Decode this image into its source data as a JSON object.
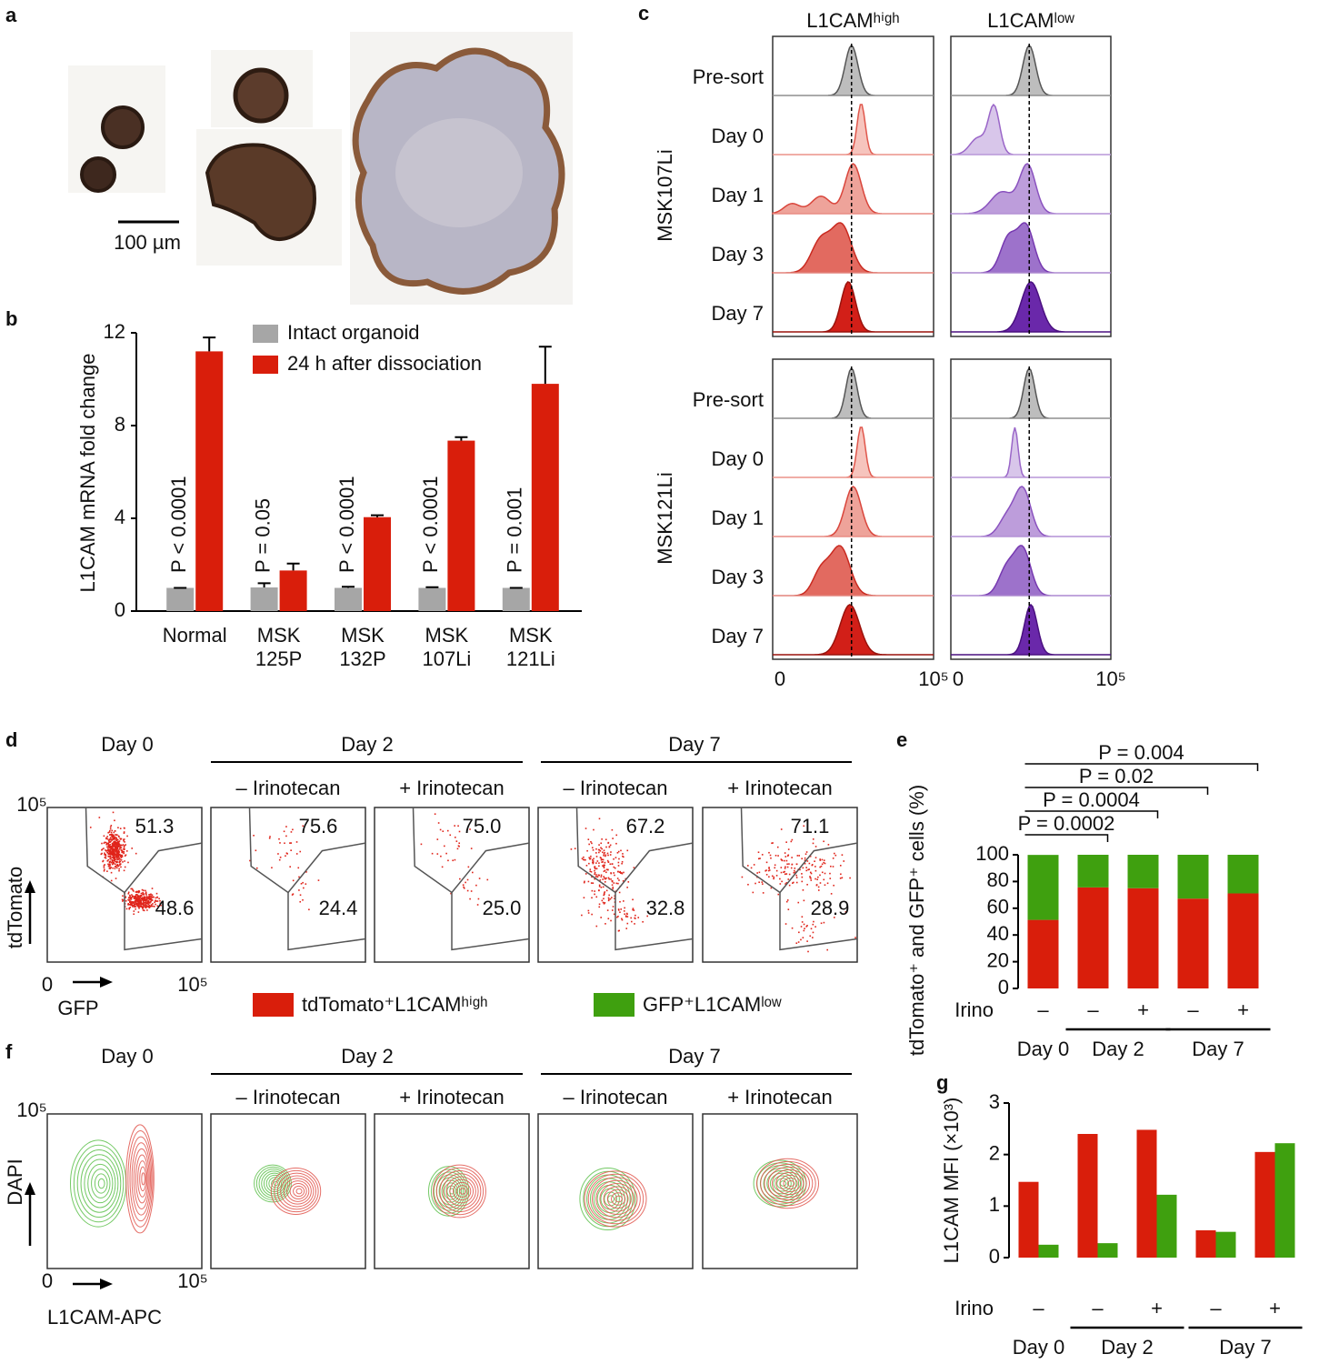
{
  "panel_labels": [
    "a",
    "b",
    "c",
    "d",
    "e",
    "f",
    "g"
  ],
  "panel_a": {
    "scale_bar": "100 µm"
  },
  "chart_data": [
    {
      "type": "bar",
      "y_label": "L1CAM mRNA fold change",
      "categories": [
        "Normal",
        "MSK 125P",
        "MSK 132P",
        "MSK 107Li",
        "MSK 121Li"
      ],
      "series": [
        {
          "name": "Intact organoid",
          "color": "#a6a6a6",
          "values": [
            1,
            1.02,
            1,
            1,
            1
          ],
          "errors": [
            0,
            0.18,
            0.05,
            0.03,
            0
          ]
        },
        {
          "name": "24 h after dissociation",
          "color": "#d91e0b",
          "values": [
            11.2,
            1.75,
            4.05,
            7.35,
            9.8
          ],
          "errors": [
            0.6,
            0.3,
            0.08,
            0.15,
            1.6
          ]
        }
      ],
      "annotations": [
        "P < 0.0001",
        "P = 0.05",
        "P < 0.0001",
        "P < 0.0001",
        "P = 0.001"
      ],
      "ylim": [
        0,
        12
      ],
      "yticks": [
        0,
        4,
        8,
        12
      ]
    },
    {
      "type": "stacked_bar",
      "y_label": "tdTomato⁺ and GFP⁺ cells (%)",
      "row_label": "Irino",
      "categories": [
        "–",
        "–",
        "+",
        "–",
        "+"
      ],
      "groups": [
        "Day 0",
        "Day 2",
        "Day 7"
      ],
      "series": [
        {
          "name": "tdTomato⁺L1CAMʰⁱᵍʰ",
          "color": "#d91e0b",
          "values": [
            51.3,
            75.6,
            75.0,
            67.2,
            71.1
          ]
        },
        {
          "name": "GFP⁺L1CAMˡᵒʷ",
          "color": "#3fa00f",
          "values": [
            48.6,
            24.4,
            25.0,
            32.8,
            28.9
          ]
        }
      ],
      "brackets": [
        "P = 0.0002",
        "P = 0.0004",
        "P = 0.02",
        "P = 0.004"
      ],
      "ylim": [
        0,
        100
      ],
      "yticks": [
        0,
        20,
        40,
        60,
        80,
        100
      ]
    },
    {
      "type": "bar",
      "y_label": "L1CAM MFI (×10³)",
      "row_label": "Irino",
      "categories": [
        "–",
        "–",
        "+",
        "–",
        "+"
      ],
      "groups": [
        "Day 0",
        "Day 2",
        "Day 7"
      ],
      "series": [
        {
          "color": "#d91e0b",
          "values": [
            1.47,
            2.4,
            2.48,
            0.53,
            2.05
          ]
        },
        {
          "color": "#3fa00f",
          "values": [
            0.25,
            0.28,
            1.22,
            0.5,
            2.22
          ]
        }
      ],
      "ylim": [
        0,
        3
      ],
      "yticks": [
        0,
        1,
        2,
        3
      ]
    }
  ],
  "panel_c": {
    "columns": [
      "L1CAMʰⁱᵍʰ",
      "L1CAMˡᵒʷ"
    ],
    "groups": [
      "MSK107Li",
      "MSK121Li"
    ],
    "rows": [
      "Pre-sort",
      "Day 0",
      "Day 1",
      "Day 3",
      "Day 7"
    ],
    "x_ticks": [
      0,
      {
        "value": 100000,
        "label": "10⁵"
      }
    ]
  },
  "panel_d": {
    "titles": [
      "Day 0",
      "Day 2",
      "Day 7"
    ],
    "conditions": [
      "– Irinotecan",
      "+ Irinotecan"
    ],
    "gates": [
      [
        51.3,
        48.6
      ],
      [
        75.6,
        24.4
      ],
      [
        {
          "value": 75,
          "label": "75.0"
        },
        {
          "value": 25,
          "label": "25.0"
        }
      ],
      [
        67.2,
        32.8
      ],
      [
        71.1,
        28.9
      ]
    ],
    "y_label": "tdTomato",
    "x_label": "GFP",
    "ticks": [
      0,
      {
        "value": 100000,
        "label": "10⁵"
      }
    ]
  },
  "panel_f": {
    "titles": [
      "Day 0",
      "Day 2",
      "Day 7"
    ],
    "conditions": [
      "– Irinotecan",
      "+ Irinotecan"
    ],
    "y_label": "DAPI",
    "x_label": "L1CAM-APC",
    "ticks": [
      0,
      {
        "value": 100000,
        "label": "10⁵"
      }
    ]
  }
}
